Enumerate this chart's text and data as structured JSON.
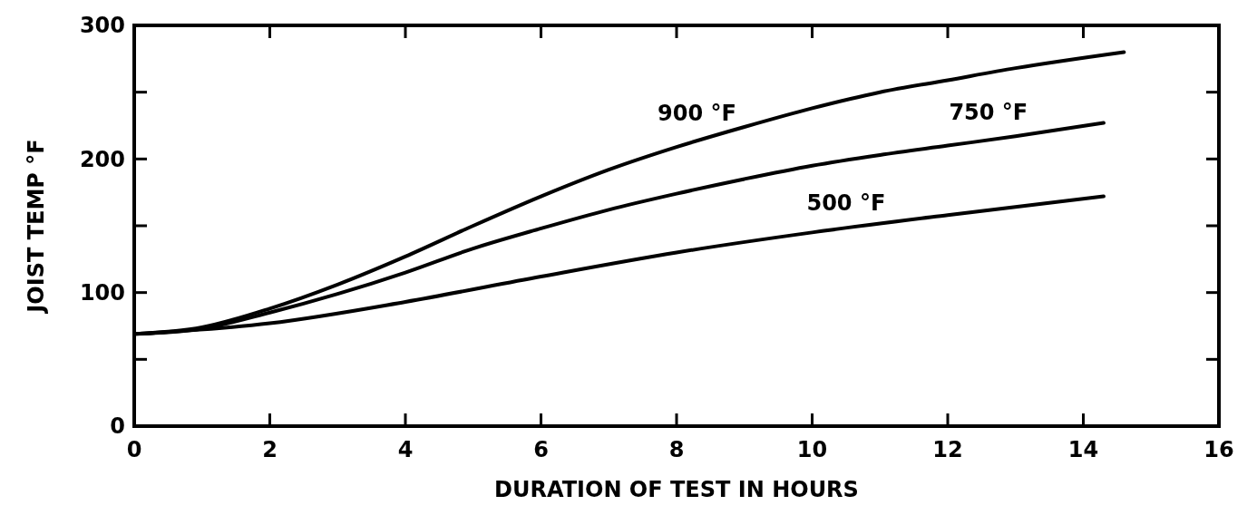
{
  "chart_data": {
    "type": "line",
    "xlabel": "DURATION  OF  TEST  IN  HOURS",
    "ylabel": "JOIST  TEMP  °F",
    "xlim": [
      0,
      16
    ],
    "xticks": [
      0,
      2,
      4,
      6,
      8,
      10,
      12,
      14,
      16
    ],
    "ylim": [
      0,
      300
    ],
    "yticks": [
      0,
      {
        "value": 50,
        "label": null
      },
      100,
      {
        "value": 150,
        "label": null
      },
      200,
      {
        "value": 250,
        "label": null
      },
      300
    ],
    "grid": false,
    "marker": "none",
    "line_style": "solid",
    "series": [
      {
        "name": "900 °F",
        "color": "#000000",
        "x": [
          0,
          1,
          2,
          3,
          4,
          5,
          6,
          7,
          8,
          9,
          10,
          11,
          12,
          13,
          14.6
        ],
        "values": [
          69,
          74,
          88,
          106,
          127,
          150,
          172,
          192,
          209,
          224,
          238,
          250,
          259,
          268,
          280
        ]
      },
      {
        "name": "750 °F",
        "color": "#000000",
        "x": [
          0,
          1,
          2,
          3,
          4,
          5,
          6,
          7,
          8,
          9,
          10,
          11,
          12,
          13,
          14.3
        ],
        "values": [
          69,
          73,
          85,
          99,
          115,
          133,
          148,
          162,
          174,
          185,
          195,
          203,
          210,
          217,
          227
        ]
      },
      {
        "name": "500 °F",
        "color": "#000000",
        "x": [
          0,
          2,
          4,
          6,
          8,
          10,
          12,
          14.3
        ],
        "values": [
          69,
          77,
          93,
          112,
          130,
          145,
          158,
          172
        ]
      }
    ]
  }
}
